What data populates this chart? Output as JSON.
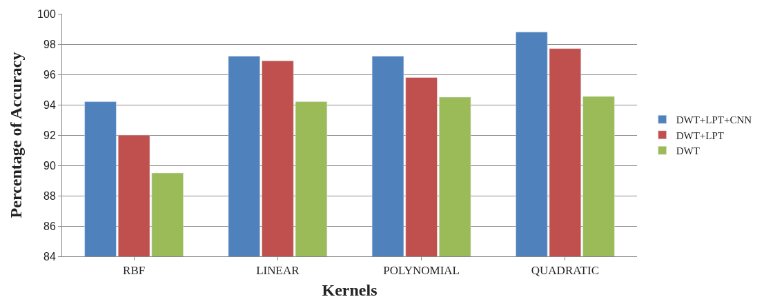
{
  "chart_data": {
    "type": "bar",
    "xlabel": "Kernels",
    "ylabel": "Percentage of Accuracy",
    "categories": [
      "RBF",
      "LINEAR",
      "POLYNOMIAL",
      "QUADRATIC"
    ],
    "series": [
      {
        "name": "DWT+LPT+CNN",
        "color": "#4f81bd",
        "values": [
          94.2,
          97.2,
          97.2,
          98.8
        ]
      },
      {
        "name": "DWT+LPT",
        "color": "#c0504d",
        "values": [
          92.0,
          96.9,
          95.8,
          97.7
        ]
      },
      {
        "name": "DWT",
        "color": "#9bbb59",
        "values": [
          89.5,
          94.2,
          94.5,
          94.55
        ]
      }
    ],
    "ylim": [
      84,
      100
    ],
    "yticks": [
      84,
      86,
      88,
      90,
      92,
      94,
      96,
      98,
      100
    ],
    "grid": "y",
    "legend": "right"
  }
}
